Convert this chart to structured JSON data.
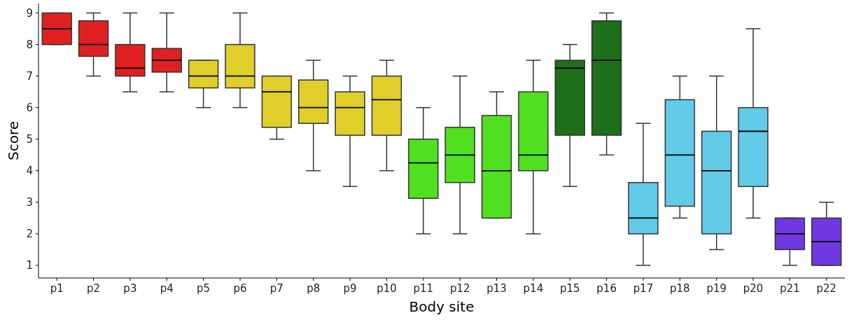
{
  "chart_data": {
    "type": "box",
    "xlabel": "Body site",
    "ylabel": "Score",
    "categories": [
      "p1",
      "p2",
      "p3",
      "p4",
      "p5",
      "p6",
      "p7",
      "p8",
      "p9",
      "p10",
      "p11",
      "p12",
      "p13",
      "p14",
      "p15",
      "p16",
      "p17",
      "p18",
      "p19",
      "p20",
      "p21",
      "p22"
    ],
    "colors": [
      "#e02020",
      "#e02020",
      "#e02020",
      "#e02020",
      "#e0cf2b",
      "#e0cf2b",
      "#e0cf2b",
      "#e0cf2b",
      "#e0cf2b",
      "#e0cf2b",
      "#50e020",
      "#50e020",
      "#50e020",
      "#50e020",
      "#1f6e1a",
      "#1f6e1a",
      "#62cbe8",
      "#62cbe8",
      "#62cbe8",
      "#62cbe8",
      "#7038e0",
      "#7038e0"
    ],
    "boxes": [
      {
        "low": 8,
        "q1": 8,
        "median": 8.5,
        "q3": 9,
        "high": 9
      },
      {
        "low": 7,
        "q1": 7.625,
        "median": 8,
        "q3": 8.75,
        "high": 9
      },
      {
        "low": 6.5,
        "q1": 7,
        "median": 7.25,
        "q3": 8,
        "high": 9
      },
      {
        "low": 6.5,
        "q1": 7.125,
        "median": 7.5,
        "q3": 7.875,
        "high": 9
      },
      {
        "low": 6,
        "q1": 6.625,
        "median": 7,
        "q3": 7.5,
        "high": 7.5
      },
      {
        "low": 6,
        "q1": 6.625,
        "median": 7,
        "q3": 8,
        "high": 9
      },
      {
        "low": 5,
        "q1": 5.375,
        "median": 6.5,
        "q3": 7,
        "high": 7
      },
      {
        "low": 4,
        "q1": 5.5,
        "median": 6,
        "q3": 6.875,
        "high": 7.5
      },
      {
        "low": 3.5,
        "q1": 5.125,
        "median": 6,
        "q3": 6.5,
        "high": 7
      },
      {
        "low": 4,
        "q1": 5.125,
        "median": 6.25,
        "q3": 7,
        "high": 7.5
      },
      {
        "low": 2,
        "q1": 3.125,
        "median": 4.25,
        "q3": 5,
        "high": 6
      },
      {
        "low": 2,
        "q1": 3.625,
        "median": 4.5,
        "q3": 5.375,
        "high": 7
      },
      {
        "low": 2.5,
        "q1": 2.5,
        "median": 4,
        "q3": 5.75,
        "high": 6.5
      },
      {
        "low": 2,
        "q1": 4,
        "median": 4.5,
        "q3": 6.5,
        "high": 7.5
      },
      {
        "low": 3.5,
        "q1": 5.125,
        "median": 7.25,
        "q3": 7.5,
        "high": 8
      },
      {
        "low": 4.5,
        "q1": 5.125,
        "median": 7.5,
        "q3": 8.75,
        "high": 9
      },
      {
        "low": 1,
        "q1": 2,
        "median": 2.5,
        "q3": 3.625,
        "high": 5.5
      },
      {
        "low": 2.5,
        "q1": 2.875,
        "median": 4.5,
        "q3": 6.25,
        "high": 7
      },
      {
        "low": 1.5,
        "q1": 2,
        "median": 4,
        "q3": 5.25,
        "high": 7
      },
      {
        "low": 2.5,
        "q1": 3.5,
        "median": 5.25,
        "q3": 6,
        "high": 8.5
      },
      {
        "low": 1,
        "q1": 1.5,
        "median": 2,
        "q3": 2.5,
        "high": 2.5
      },
      {
        "low": 1,
        "q1": 1,
        "median": 1.75,
        "q3": 2.5,
        "high": 3
      }
    ],
    "ylim": [
      0.6,
      9.3
    ],
    "yticks": [
      1,
      2,
      3,
      4,
      5,
      6,
      7,
      8,
      9
    ],
    "grid": false
  }
}
